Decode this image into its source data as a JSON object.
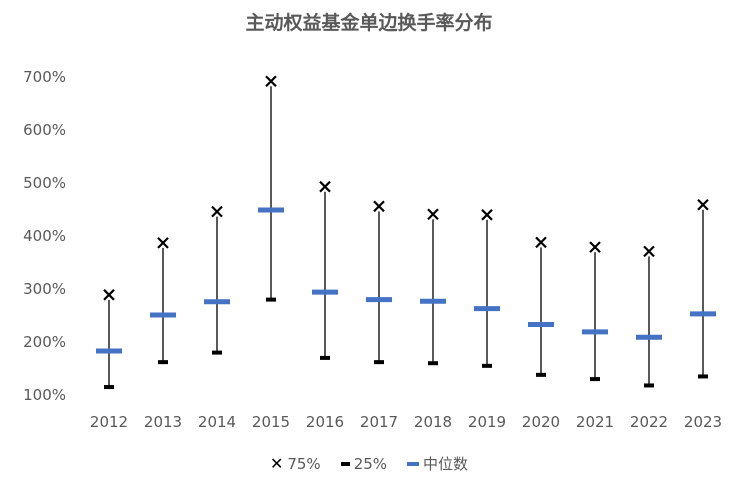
{
  "chart_data": {
    "type": "box",
    "title": "主动权益基金单边换手率分布",
    "categories": [
      "2012",
      "2013",
      "2014",
      "2015",
      "2016",
      "2017",
      "2018",
      "2019",
      "2020",
      "2021",
      "2022",
      "2023"
    ],
    "series": [
      {
        "name": "75%",
        "values": [
          289,
          387,
          446,
          692,
          493,
          456,
          441,
          440,
          388,
          379,
          371,
          459
        ]
      },
      {
        "name": "25%",
        "values": [
          115,
          162,
          180,
          280,
          170,
          162,
          160,
          155,
          138,
          130,
          118,
          135
        ]
      },
      {
        "name": "中位数",
        "values": [
          183,
          251,
          276,
          449,
          294,
          280,
          277,
          263,
          233,
          219,
          209,
          253
        ]
      }
    ],
    "ylim": [
      100,
      700
    ],
    "yticks": [
      100,
      200,
      300,
      400,
      500,
      600,
      700
    ],
    "ytick_labels": [
      "100%",
      "200%",
      "300%",
      "400%",
      "500%",
      "600%",
      "700%"
    ],
    "legend_position": "bottom",
    "grid": false,
    "colors": {
      "p75": "#000000",
      "p25": "#000000",
      "median": "#4472C4",
      "whisker": "#595959",
      "text": "#595959"
    }
  }
}
